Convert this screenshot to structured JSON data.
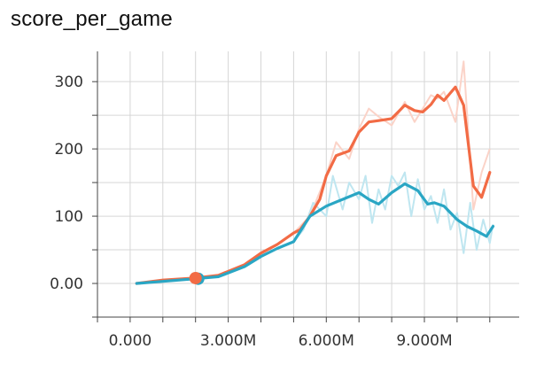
{
  "chart_data": {
    "type": "line",
    "title": "score_per_game",
    "xlabel": "",
    "ylabel": "",
    "xlim": [
      -1000000,
      11900000
    ],
    "ylim": [
      -50,
      345
    ],
    "x_ticks": [
      {
        "value": 0,
        "label": "0.000"
      },
      {
        "value": 3000000,
        "label": "3.000M"
      },
      {
        "value": 6000000,
        "label": "6.000M"
      },
      {
        "value": 9000000,
        "label": "9.000M"
      }
    ],
    "x_grid": [
      -1000000,
      0,
      1000000,
      2000000,
      3000000,
      4000000,
      5000000,
      6000000,
      7000000,
      8000000,
      9000000,
      10000000,
      11000000
    ],
    "y_ticks": [
      {
        "value": 0,
        "label": "0.00"
      },
      {
        "value": 100,
        "label": "100"
      },
      {
        "value": 200,
        "label": "200"
      },
      {
        "value": 300,
        "label": "300"
      }
    ],
    "y_grid": [
      -50,
      0,
      50,
      100,
      150,
      200,
      250,
      300
    ],
    "grid": true,
    "series": [
      {
        "color": "#f26b45",
        "raw_color": "#fbd3c8",
        "smoothed": {
          "x": [
            200000,
            1000000,
            2000000,
            2700000,
            3500000,
            4000000,
            4500000,
            5000000,
            5200000,
            5500000,
            5800000,
            6000000,
            6300000,
            6700000,
            7000000,
            7300000,
            7600000,
            8000000,
            8400000,
            8700000,
            8950000,
            9200000,
            9400000,
            9600000,
            9950000,
            10200000,
            10500000,
            10750000,
            11000000
          ],
          "y": [
            0,
            5,
            8,
            12,
            28,
            45,
            58,
            75,
            80,
            100,
            125,
            160,
            190,
            197,
            225,
            240,
            242,
            245,
            265,
            257,
            255,
            266,
            280,
            272,
            292,
            265,
            145,
            128,
            165
          ]
        },
        "raw": {
          "x": [
            200000,
            1000000,
            2000000,
            2700000,
            3500000,
            4000000,
            4500000,
            5000000,
            5500000,
            6000000,
            6300000,
            6700000,
            7000000,
            7300000,
            7600000,
            8000000,
            8400000,
            8700000,
            8950000,
            9200000,
            9400000,
            9600000,
            9950000,
            10200000,
            10500000,
            10750000,
            11000000
          ],
          "y": [
            0,
            5,
            8,
            12,
            28,
            45,
            58,
            75,
            100,
            160,
            210,
            185,
            230,
            260,
            248,
            235,
            270,
            240,
            260,
            280,
            275,
            285,
            240,
            330,
            110,
            165,
            200
          ]
        }
      },
      {
        "color": "#2aa6c4",
        "raw_color": "#bfe6f0",
        "smoothed": {
          "x": [
            200000,
            1000000,
            2000000,
            2700000,
            3500000,
            4000000,
            4500000,
            5000000,
            5500000,
            6000000,
            6500000,
            7000000,
            7300000,
            7600000,
            8000000,
            8400000,
            8800000,
            9100000,
            9300000,
            9600000,
            10000000,
            10300000,
            10600000,
            10900000,
            11100000
          ],
          "y": [
            0,
            3,
            7,
            10,
            25,
            40,
            52,
            62,
            100,
            115,
            125,
            135,
            125,
            118,
            135,
            148,
            138,
            118,
            120,
            115,
            95,
            85,
            78,
            70,
            85
          ]
        },
        "raw": {
          "x": [
            200000,
            1000000,
            2000000,
            2700000,
            3500000,
            4000000,
            4500000,
            5000000,
            5300000,
            5600000,
            6000000,
            6200000,
            6500000,
            6700000,
            7000000,
            7200000,
            7400000,
            7600000,
            7800000,
            8000000,
            8200000,
            8400000,
            8600000,
            8800000,
            9000000,
            9200000,
            9400000,
            9600000,
            9800000,
            10000000,
            10200000,
            10400000,
            10600000,
            10800000,
            11000000,
            11100000
          ],
          "y": [
            0,
            3,
            7,
            10,
            25,
            40,
            52,
            62,
            80,
            120,
            100,
            160,
            110,
            150,
            125,
            160,
            90,
            140,
            110,
            160,
            145,
            165,
            100,
            155,
            110,
            130,
            90,
            140,
            80,
            105,
            45,
            120,
            50,
            95,
            60,
            88
          ]
        }
      }
    ]
  }
}
